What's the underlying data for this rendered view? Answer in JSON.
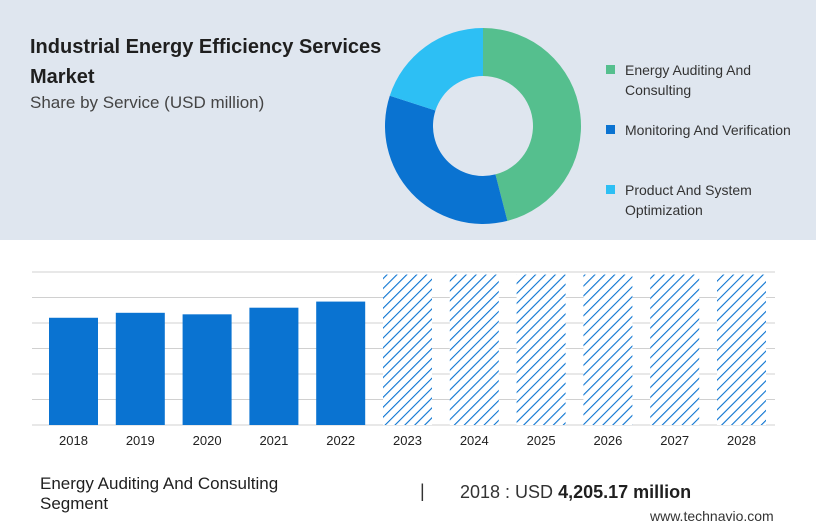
{
  "header": {
    "title": "Industrial Energy Efficiency Services Market",
    "subtitle": "Share by Service (USD million)"
  },
  "colors": {
    "panel_bg": "#dfe6ef",
    "green": "#55bf8e",
    "blue": "#0a73d1",
    "light_blue": "#2dbff4",
    "gridline": "#d0d0d0"
  },
  "chart_data": [
    {
      "type": "pie",
      "donut": true,
      "title": "Share by Service (USD million)",
      "legend_position": "right",
      "slices": [
        {
          "label": "Energy Auditing And Consulting",
          "value": 46,
          "color": "#55bf8e"
        },
        {
          "label": "Monitoring And Verification",
          "value": 34,
          "color": "#0a73d1"
        },
        {
          "label": "Product And System Optimization",
          "value": 20,
          "color": "#2dbff4"
        }
      ]
    },
    {
      "type": "bar",
      "categories": [
        "2018",
        "2019",
        "2020",
        "2021",
        "2022",
        "2023",
        "2024",
        "2025",
        "2026",
        "2027",
        "2028"
      ],
      "values": [
        4205.17,
        4400,
        4340,
        4600,
        4840,
        5900,
        5900,
        5900,
        5900,
        5900,
        5900
      ],
      "forecast_from": "2023",
      "ylim": [
        0,
        6000
      ],
      "grid": true,
      "bar_color": "#0a73d1",
      "forecast_style": "hatched"
    }
  ],
  "footer": {
    "segment_label": "Energy Auditing And Consulting Segment",
    "separator": "|",
    "value_prefix": "2018 : USD",
    "value_bold": "4,205.17 million",
    "watermark": "www.technavio.com"
  }
}
